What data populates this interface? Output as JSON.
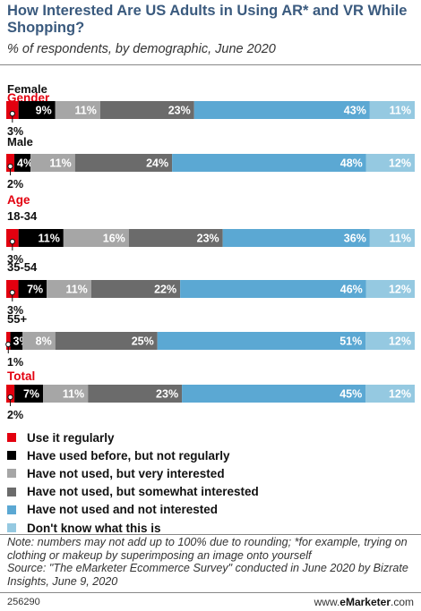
{
  "title": "How Interested Are US Adults in Using AR* and VR While Shopping?",
  "subtitle": "% of respondents, by demographic, June 2020",
  "colors": {
    "use_regularly": "#e3000f",
    "used_before": "#000000",
    "very_interested": "#a6a6a6",
    "somewhat_interested": "#6b6b6b",
    "not_interested": "#5ba8d3",
    "dont_know": "#95c9e1",
    "section_header": "#e3000f"
  },
  "legend": [
    {
      "label": "Use it regularly",
      "color": "#e3000f"
    },
    {
      "label": "Have used before, but not regularly",
      "color": "#000000"
    },
    {
      "label": "Have not used, but very interested",
      "color": "#a6a6a6"
    },
    {
      "label": "Have not used, but somewhat interested",
      "color": "#6b6b6b"
    },
    {
      "label": "Have not used and not interested",
      "color": "#5ba8d3"
    },
    {
      "label": "Don't know what this is",
      "color": "#95c9e1"
    }
  ],
  "note": "Note: numbers may not add up to 100% due to rounding; *for example, trying on clothing or makeup by superimposing an image onto yourself",
  "source": "Source: \"The eMarketer Ecommerce Survey\" conducted in June 2020 by Bizrate Insights, June 9, 2020",
  "footer_id": "256290",
  "footer_brand_prefix": "www.",
  "footer_brand_name": "eMarketer",
  "footer_brand_suffix": ".com",
  "chart_data": {
    "type": "bar",
    "orientation": "horizontal",
    "stacked": true,
    "unit": "%",
    "series": [
      {
        "name": "Use it regularly",
        "color": "#e3000f"
      },
      {
        "name": "Have used before, but not regularly",
        "color": "#000000"
      },
      {
        "name": "Have not used, but very interested",
        "color": "#a6a6a6"
      },
      {
        "name": "Have not used, but somewhat interested",
        "color": "#6b6b6b"
      },
      {
        "name": "Have not used and not interested",
        "color": "#5ba8d3"
      },
      {
        "name": "Don't know what this is",
        "color": "#95c9e1"
      }
    ],
    "groups": [
      {
        "label": "Gender",
        "rows": [
          {
            "label": "Female",
            "values": [
              3,
              9,
              11,
              23,
              43,
              11
            ]
          },
          {
            "label": "Male",
            "values": [
              2,
              4,
              11,
              24,
              48,
              12
            ]
          }
        ]
      },
      {
        "label": "Age",
        "rows": [
          {
            "label": "18-34",
            "values": [
              3,
              11,
              16,
              23,
              36,
              11
            ]
          },
          {
            "label": "35-54",
            "values": [
              3,
              7,
              11,
              22,
              46,
              12
            ]
          },
          {
            "label": "55+",
            "values": [
              1,
              3,
              8,
              25,
              51,
              12
            ]
          }
        ]
      },
      {
        "label": "Total",
        "rows": [
          {
            "label": "",
            "values": [
              2,
              7,
              11,
              23,
              45,
              12
            ]
          }
        ]
      }
    ],
    "legend_position": "bottom",
    "grid": false
  }
}
